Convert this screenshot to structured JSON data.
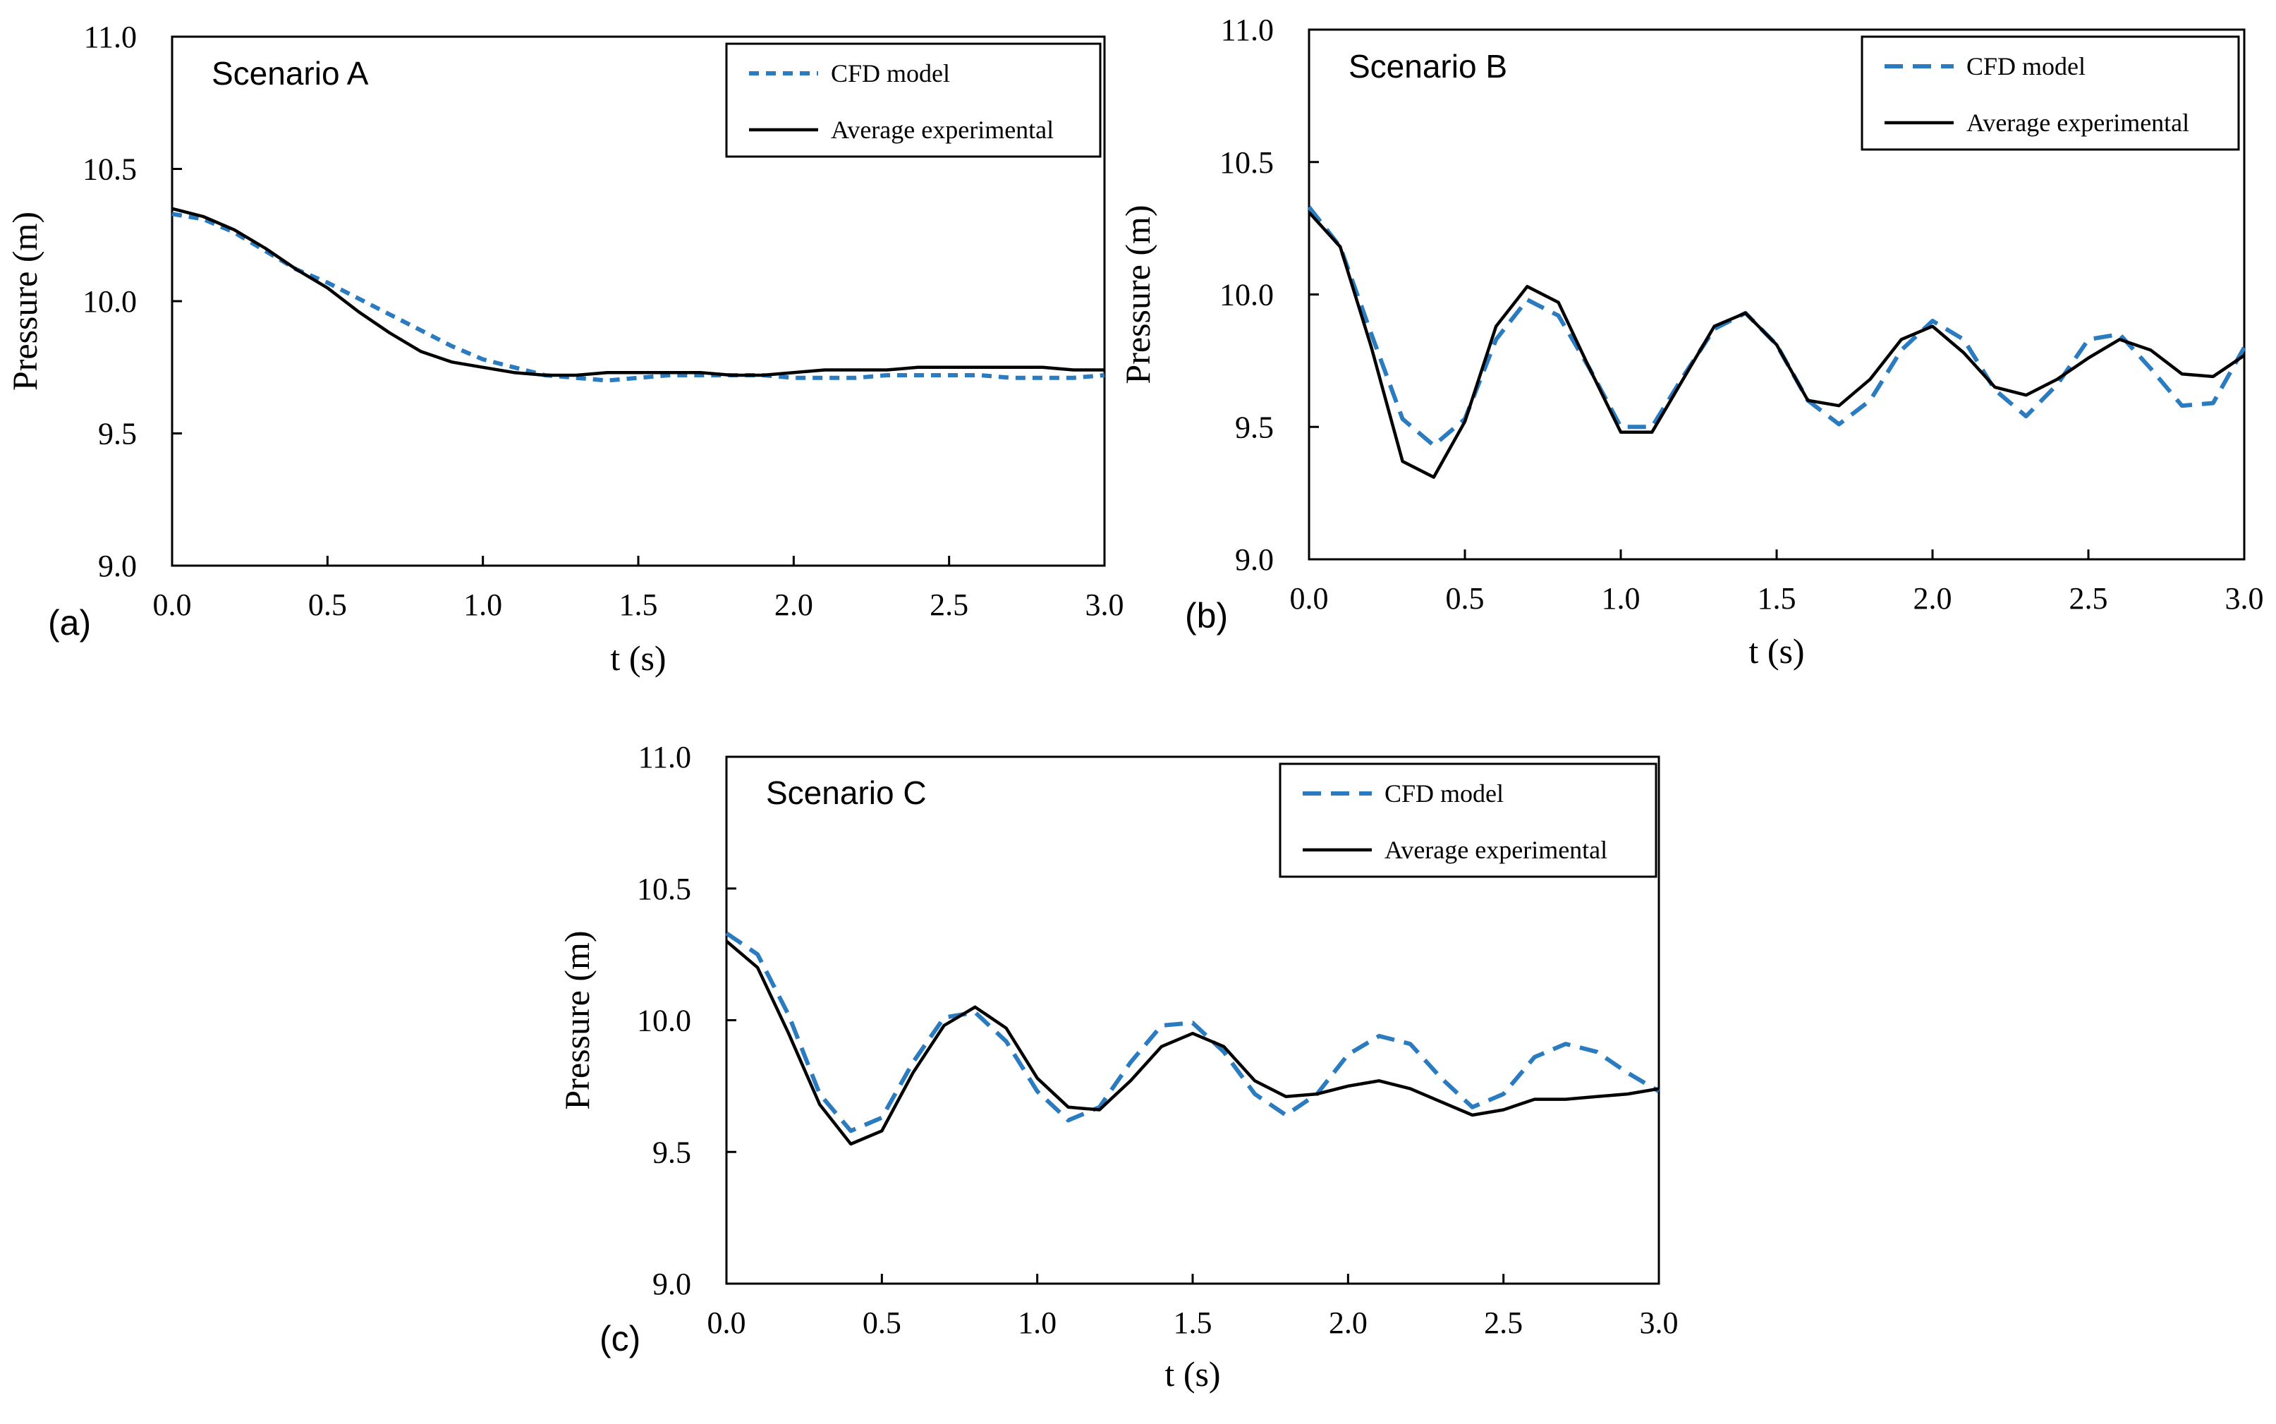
{
  "chart_data": [
    {
      "type": "line",
      "panel_label": "(a)",
      "title": "Scenario A",
      "xlabel": "t (s)",
      "ylabel": "Pressure (m)",
      "xlim": [
        0,
        3
      ],
      "ylim": [
        9,
        11
      ],
      "xticks": [
        "0.0",
        "0.5",
        "1.0",
        "1.5",
        "2.0",
        "2.5",
        "3.0"
      ],
      "yticks": [
        "9.0",
        "9.5",
        "10.0",
        "10.5",
        "11.0"
      ],
      "legend": [
        "CFD model",
        "Average experimental"
      ],
      "series": [
        {
          "name": "CFD model",
          "style": "dashed",
          "color": "#2a7bc0",
          "x": [
            0.0,
            0.1,
            0.2,
            0.3,
            0.4,
            0.5,
            0.6,
            0.7,
            0.8,
            0.9,
            1.0,
            1.1,
            1.2,
            1.3,
            1.4,
            1.5,
            1.6,
            1.7,
            1.8,
            1.9,
            2.0,
            2.1,
            2.2,
            2.3,
            2.4,
            2.5,
            2.6,
            2.7,
            2.8,
            2.9,
            3.0
          ],
          "y": [
            10.33,
            10.31,
            10.26,
            10.19,
            10.12,
            10.07,
            10.01,
            9.95,
            9.89,
            9.83,
            9.78,
            9.75,
            9.72,
            9.71,
            9.7,
            9.71,
            9.72,
            9.72,
            9.72,
            9.72,
            9.71,
            9.71,
            9.71,
            9.72,
            9.72,
            9.72,
            9.72,
            9.71,
            9.71,
            9.71,
            9.72
          ]
        },
        {
          "name": "Average experimental",
          "style": "solid",
          "color": "#000000",
          "x": [
            0.0,
            0.1,
            0.2,
            0.3,
            0.4,
            0.5,
            0.6,
            0.7,
            0.8,
            0.9,
            1.0,
            1.1,
            1.2,
            1.3,
            1.4,
            1.5,
            1.6,
            1.7,
            1.8,
            1.9,
            2.0,
            2.1,
            2.2,
            2.3,
            2.4,
            2.5,
            2.6,
            2.7,
            2.8,
            2.9,
            3.0
          ],
          "y": [
            10.35,
            10.32,
            10.27,
            10.2,
            10.12,
            10.05,
            9.96,
            9.88,
            9.81,
            9.77,
            9.75,
            9.73,
            9.72,
            9.72,
            9.73,
            9.73,
            9.73,
            9.73,
            9.72,
            9.72,
            9.73,
            9.74,
            9.74,
            9.74,
            9.75,
            9.75,
            9.75,
            9.75,
            9.75,
            9.74,
            9.74
          ]
        }
      ]
    },
    {
      "type": "line",
      "panel_label": "(b)",
      "title": "Scenario B",
      "xlabel": "t (s)",
      "ylabel": "Pressure (m)",
      "xlim": [
        0,
        3
      ],
      "ylim": [
        9,
        11
      ],
      "xticks": [
        "0.0",
        "0.5",
        "1.0",
        "1.5",
        "2.0",
        "2.5",
        "3.0"
      ],
      "yticks": [
        "9.0",
        "9.5",
        "10.0",
        "10.5",
        "11.0"
      ],
      "legend": [
        "CFD model",
        "Average experimental"
      ],
      "series": [
        {
          "name": "CFD model",
          "style": "dashed",
          "color": "#2a7bc0",
          "x": [
            0.0,
            0.1,
            0.2,
            0.3,
            0.4,
            0.5,
            0.6,
            0.7,
            0.8,
            0.9,
            1.0,
            1.1,
            1.2,
            1.3,
            1.4,
            1.5,
            1.6,
            1.7,
            1.8,
            1.9,
            2.0,
            2.1,
            2.2,
            2.3,
            2.4,
            2.5,
            2.6,
            2.7,
            2.8,
            2.9,
            3.0
          ],
          "y": [
            10.33,
            10.18,
            9.85,
            9.53,
            9.43,
            9.53,
            9.83,
            9.98,
            9.92,
            9.72,
            9.5,
            9.5,
            9.69,
            9.87,
            9.93,
            9.81,
            9.6,
            9.51,
            9.6,
            9.79,
            9.9,
            9.83,
            9.64,
            9.54,
            9.66,
            9.83,
            9.85,
            9.72,
            9.58,
            9.59,
            9.8
          ]
        },
        {
          "name": "Average experimental",
          "style": "solid",
          "color": "#000000",
          "x": [
            0.0,
            0.1,
            0.2,
            0.3,
            0.4,
            0.5,
            0.6,
            0.7,
            0.8,
            0.9,
            1.0,
            1.1,
            1.2,
            1.3,
            1.4,
            1.5,
            1.6,
            1.7,
            1.8,
            1.9,
            2.0,
            2.1,
            2.2,
            2.3,
            2.4,
            2.5,
            2.6,
            2.7,
            2.8,
            2.9,
            3.0
          ],
          "y": [
            10.31,
            10.18,
            9.8,
            9.37,
            9.31,
            9.52,
            9.88,
            10.03,
            9.97,
            9.72,
            9.48,
            9.48,
            9.68,
            9.88,
            9.93,
            9.81,
            9.6,
            9.58,
            9.68,
            9.83,
            9.88,
            9.78,
            9.65,
            9.62,
            9.68,
            9.76,
            9.83,
            9.79,
            9.7,
            9.69,
            9.77
          ]
        }
      ]
    },
    {
      "type": "line",
      "panel_label": "(c)",
      "title": "Scenario C",
      "xlabel": "t (s)",
      "ylabel": "Pressure (m)",
      "xlim": [
        0,
        3
      ],
      "ylim": [
        9,
        11
      ],
      "xticks": [
        "0.0",
        "0.5",
        "1.0",
        "1.5",
        "2.0",
        "2.5",
        "3.0"
      ],
      "yticks": [
        "9.0",
        "9.5",
        "10.0",
        "10.5",
        "11.0"
      ],
      "legend": [
        "CFD model",
        "Average experimental"
      ],
      "series": [
        {
          "name": "CFD model",
          "style": "dashed",
          "color": "#2a7bc0",
          "x": [
            0.0,
            0.1,
            0.2,
            0.3,
            0.4,
            0.5,
            0.6,
            0.7,
            0.8,
            0.9,
            1.0,
            1.1,
            1.2,
            1.3,
            1.4,
            1.5,
            1.6,
            1.7,
            1.8,
            1.9,
            2.0,
            2.1,
            2.2,
            2.3,
            2.4,
            2.5,
            2.6,
            2.7,
            2.8,
            2.9,
            3.0
          ],
          "y": [
            10.33,
            10.25,
            10.02,
            9.72,
            9.58,
            9.63,
            9.84,
            10.01,
            10.03,
            9.92,
            9.73,
            9.62,
            9.67,
            9.84,
            9.98,
            9.99,
            9.88,
            9.72,
            9.64,
            9.72,
            9.87,
            9.94,
            9.91,
            9.78,
            9.67,
            9.72,
            9.86,
            9.91,
            9.88,
            9.8,
            9.73
          ]
        },
        {
          "name": "Average experimental",
          "style": "solid",
          "color": "#000000",
          "x": [
            0.0,
            0.1,
            0.2,
            0.3,
            0.4,
            0.5,
            0.6,
            0.7,
            0.8,
            0.9,
            1.0,
            1.1,
            1.2,
            1.3,
            1.4,
            1.5,
            1.6,
            1.7,
            1.8,
            1.9,
            2.0,
            2.1,
            2.2,
            2.3,
            2.4,
            2.5,
            2.6,
            2.7,
            2.8,
            2.9,
            3.0
          ],
          "y": [
            10.3,
            10.2,
            9.95,
            9.68,
            9.53,
            9.58,
            9.8,
            9.98,
            10.05,
            9.97,
            9.78,
            9.67,
            9.66,
            9.77,
            9.9,
            9.95,
            9.9,
            9.77,
            9.71,
            9.72,
            9.75,
            9.77,
            9.74,
            9.69,
            9.64,
            9.66,
            9.7,
            9.7,
            9.71,
            9.72,
            9.74
          ]
        }
      ]
    }
  ]
}
